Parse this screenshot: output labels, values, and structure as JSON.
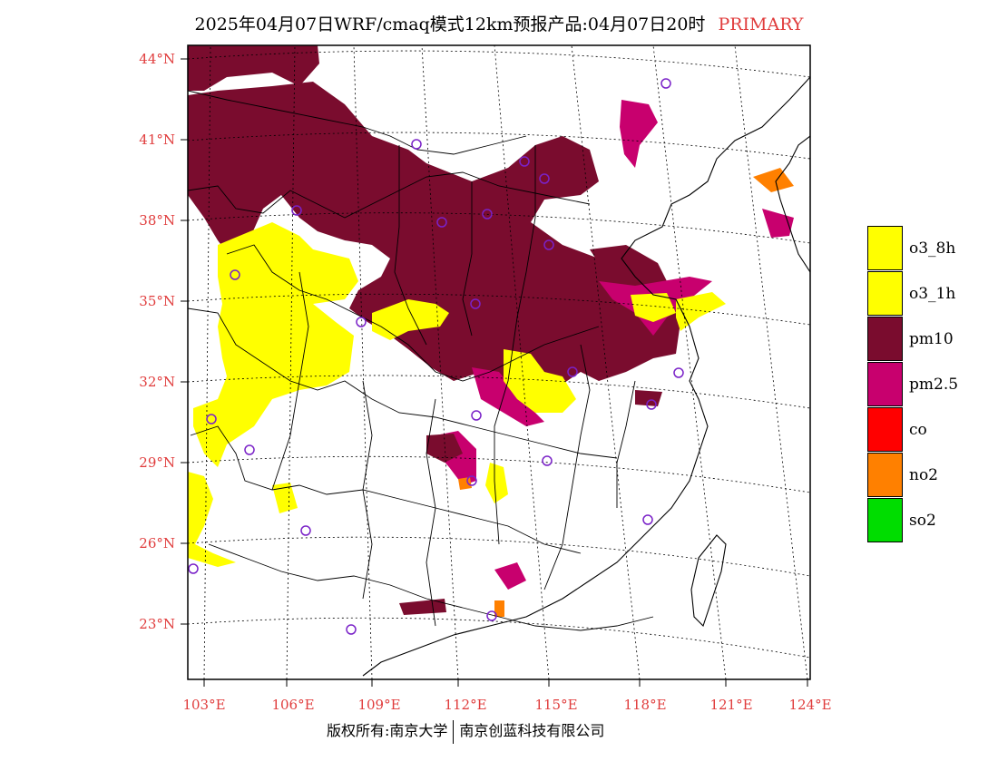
{
  "title": {
    "main": "2025年04月07日WRF/cmaq模式12km预报产品:04月07日20时",
    "tag": "PRIMARY"
  },
  "axes": {
    "lat_labels": [
      "44°N",
      "41°N",
      "38°N",
      "35°N",
      "32°N",
      "29°N",
      "26°N",
      "23°N"
    ],
    "lon_labels": [
      "103°E",
      "106°E",
      "109°E",
      "112°E",
      "115°E",
      "118°E",
      "121°E",
      "124°E"
    ]
  },
  "legend": [
    {
      "label": "o3_8h",
      "color": "#ffff00"
    },
    {
      "label": "o3_1h",
      "color": "#ffff00"
    },
    {
      "label": "pm10",
      "color": "#7a0c2e"
    },
    {
      "label": "pm2.5",
      "color": "#c8006e"
    },
    {
      "label": "co",
      "color": "#ff0000"
    },
    {
      "label": "no2",
      "color": "#ff8000"
    },
    {
      "label": "so2",
      "color": "#00dd00"
    }
  ],
  "footer": {
    "left": "版权所有:南京大学",
    "right": "南京创蓝科技有限公司"
  },
  "colors": {
    "pm10": "#7a0c2e",
    "pm25": "#c8006e",
    "o3": "#ffff00",
    "no2": "#ff8000",
    "accent": "#e03c3c",
    "city_marker": "#7a22c8"
  }
}
